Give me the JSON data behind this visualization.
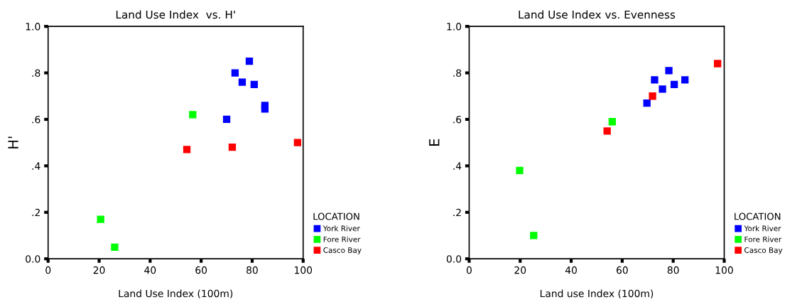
{
  "chart_data": [
    {
      "type": "scatter",
      "title": "Land Use Index  vs. H'",
      "xlabel": "Land Use Index (100m)",
      "ylabel": "H'",
      "legend_title": "LOCATION",
      "legend": "bottom right",
      "marker": "square",
      "grid": false,
      "xlim": [
        0,
        100
      ],
      "xticks": [
        0,
        20,
        40,
        60,
        80,
        100
      ],
      "ylim": [
        0,
        1
      ],
      "yticks": [
        {
          "value": 0,
          "label": "0.0"
        },
        {
          "value": 0.2,
          "label": ".2"
        },
        {
          "value": 0.4,
          "label": ".4"
        },
        {
          "value": 0.6,
          "label": ".6"
        },
        {
          "value": 0.8,
          "label": ".8"
        },
        {
          "value": 1,
          "label": "1.0"
        }
      ],
      "series": [
        {
          "name": "York River",
          "color": "#0000ff",
          "x": [
            78.9,
            73.3,
            76.1,
            80.8,
            85.0,
            85.0,
            70.0
          ],
          "values": [
            0.85,
            0.8,
            0.76,
            0.75,
            0.66,
            0.645,
            0.6
          ]
        },
        {
          "name": "Fore River",
          "color": "#00ff00",
          "x": [
            56.7,
            20.6,
            26.1
          ],
          "values": [
            0.62,
            0.17,
            0.05
          ]
        },
        {
          "name": "Casco Bay",
          "color": "#ff0000",
          "x": [
            54.4,
            72.2,
            97.8
          ],
          "values": [
            0.47,
            0.48,
            0.5
          ]
        }
      ]
    },
    {
      "type": "scatter",
      "title": "Land Use Index vs. Evenness",
      "xlabel": "Land use Index (100m)",
      "ylabel": "E",
      "legend_title": "LOCATION",
      "legend": "bottom right",
      "marker": "square",
      "grid": false,
      "xlim": [
        0,
        100
      ],
      "xticks": [
        0,
        20,
        40,
        60,
        80,
        100
      ],
      "ylim": [
        0,
        1
      ],
      "yticks": [
        {
          "value": 0,
          "label": "0.0"
        },
        {
          "value": 0.2,
          "label": ".2"
        },
        {
          "value": 0.4,
          "label": ".4"
        },
        {
          "value": 0.6,
          "label": ".6"
        },
        {
          "value": 0.8,
          "label": ".8"
        },
        {
          "value": 1,
          "label": "1.0"
        }
      ],
      "series": [
        {
          "name": "York River",
          "color": "#0000ff",
          "x": [
            78.3,
            72.7,
            75.8,
            80.4,
            84.6,
            69.7
          ],
          "values": [
            0.81,
            0.77,
            0.73,
            0.75,
            0.77,
            0.67
          ]
        },
        {
          "name": "Fore River",
          "color": "#00ff00",
          "x": [
            56.1,
            19.8,
            25.3
          ],
          "values": [
            0.59,
            0.38,
            0.1
          ]
        },
        {
          "name": "Casco Bay",
          "color": "#ff0000",
          "x": [
            97.4,
            71.9,
            54.1
          ],
          "values": [
            0.84,
            0.7,
            0.55
          ]
        }
      ]
    }
  ]
}
